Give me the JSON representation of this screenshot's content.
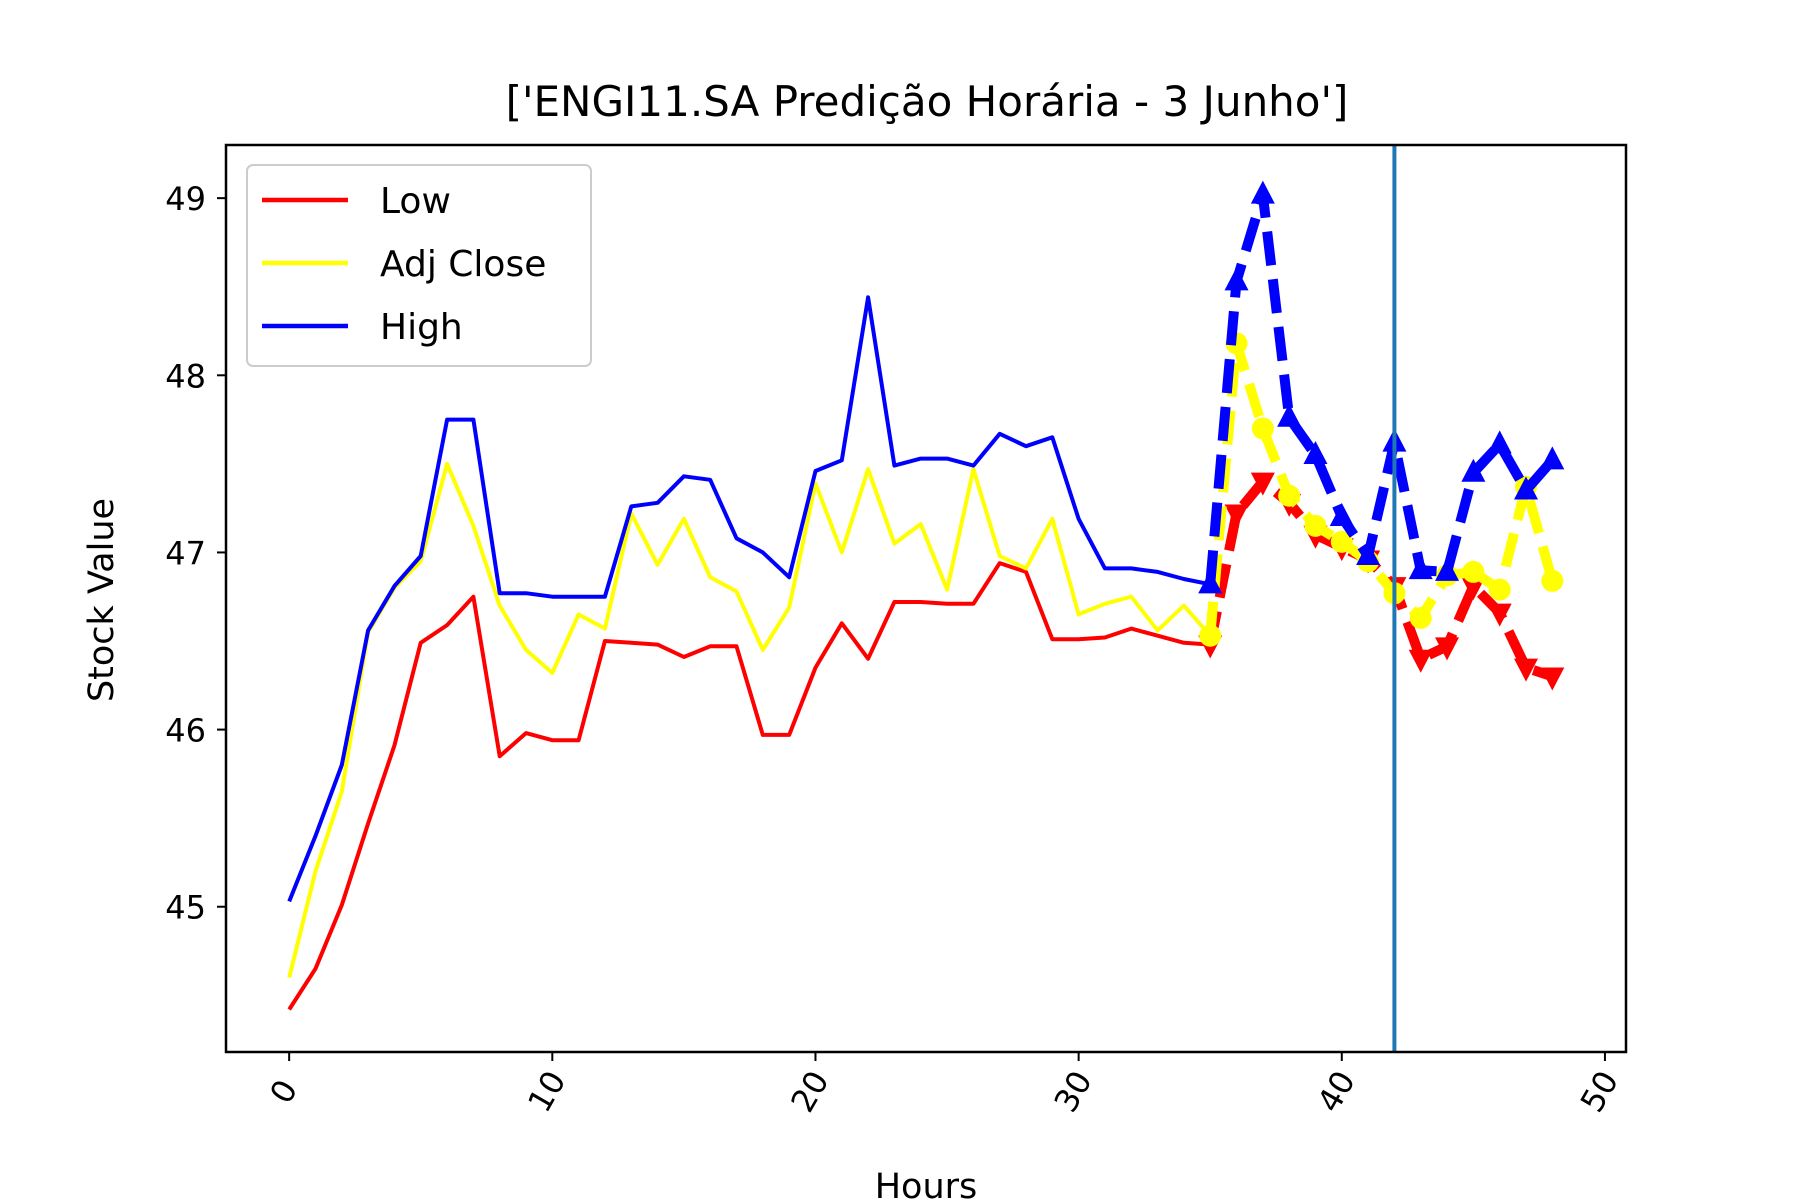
{
  "chart_data": {
    "type": "line",
    "title": "['ENGI11.SA Predição Horária - 3 Junho']",
    "xlabel": "Hours",
    "ylabel": "Stock Value",
    "xlim": [
      -2.4,
      50.8
    ],
    "ylim": [
      44.18,
      49.3
    ],
    "x_ticks": [
      0,
      10,
      20,
      30,
      40,
      50
    ],
    "y_ticks": [
      45,
      46,
      47,
      48,
      49
    ],
    "x_tick_labels": [
      "0",
      "10",
      "20",
      "30",
      "40",
      "50"
    ],
    "y_tick_labels": [
      "45",
      "46",
      "47",
      "48",
      "49"
    ],
    "x_tick_rotation": 60,
    "vertical_line": {
      "x": 42,
      "color": "#1f77b4"
    },
    "grid": false,
    "legend": {
      "location": "upper-left",
      "entries": [
        {
          "label": "Low",
          "color": "#ff0000"
        },
        {
          "label": "Adj Close",
          "color": "#ffff00"
        },
        {
          "label": "High",
          "color": "#0000ff"
        }
      ]
    },
    "series": [
      {
        "name": "Low",
        "color": "#ff0000",
        "style": "solid",
        "x": [
          0,
          1,
          2,
          3,
          4,
          5,
          6,
          7,
          8,
          9,
          10,
          11,
          12,
          13,
          14,
          15,
          16,
          17,
          18,
          19,
          20,
          21,
          22,
          23,
          24,
          25,
          26,
          27,
          28,
          29,
          30,
          31,
          32,
          33,
          34,
          35
        ],
        "values": [
          44.42,
          44.65,
          45.01,
          45.47,
          45.91,
          46.49,
          46.59,
          46.75,
          45.85,
          45.98,
          45.94,
          45.94,
          46.5,
          46.49,
          46.48,
          46.41,
          46.47,
          46.47,
          45.97,
          45.97,
          46.35,
          46.6,
          46.4,
          46.72,
          46.72,
          46.71,
          46.71,
          46.94,
          46.89,
          46.51,
          46.51,
          46.52,
          46.57,
          46.53,
          46.49,
          46.48
        ]
      },
      {
        "name": "Adj Close",
        "color": "#ffff00",
        "style": "solid",
        "x": [
          0,
          1,
          2,
          3,
          4,
          5,
          6,
          7,
          8,
          9,
          10,
          11,
          12,
          13,
          14,
          15,
          16,
          17,
          18,
          19,
          20,
          21,
          22,
          23,
          24,
          25,
          26,
          27,
          28,
          29,
          30,
          31,
          32,
          33,
          34,
          35
        ],
        "values": [
          44.6,
          45.2,
          45.65,
          46.55,
          46.8,
          46.95,
          47.5,
          47.15,
          46.7,
          46.45,
          46.32,
          46.65,
          46.57,
          47.22,
          46.93,
          47.19,
          46.86,
          46.78,
          46.45,
          46.69,
          47.39,
          47.0,
          47.47,
          47.05,
          47.16,
          46.79,
          47.47,
          46.98,
          46.91,
          47.19,
          46.65,
          46.71,
          46.75,
          46.56,
          46.7,
          46.53
        ]
      },
      {
        "name": "High",
        "color": "#0000ff",
        "style": "solid",
        "x": [
          0,
          1,
          2,
          3,
          4,
          5,
          6,
          7,
          8,
          9,
          10,
          11,
          12,
          13,
          14,
          15,
          16,
          17,
          18,
          19,
          20,
          21,
          22,
          23,
          24,
          25,
          26,
          27,
          28,
          29,
          30,
          31,
          32,
          33,
          34,
          35
        ],
        "values": [
          45.03,
          45.4,
          45.8,
          46.56,
          46.81,
          46.98,
          47.75,
          47.75,
          46.77,
          46.77,
          46.75,
          46.75,
          46.75,
          47.26,
          47.28,
          47.43,
          47.41,
          47.08,
          47.0,
          46.86,
          47.46,
          47.52,
          48.44,
          47.49,
          47.53,
          47.53,
          47.49,
          47.67,
          47.6,
          47.65,
          47.19,
          46.91,
          46.91,
          46.89,
          46.85,
          46.82
        ]
      },
      {
        "name": "",
        "color": "#ff0000",
        "style": "dashed",
        "marker": "triangle-down",
        "x": [
          35,
          36,
          37,
          38,
          39,
          40,
          41,
          42,
          43,
          44,
          45,
          46,
          47,
          48
        ],
        "values": [
          46.48,
          47.22,
          47.4,
          47.28,
          47.1,
          47.03,
          46.96,
          46.81,
          46.4,
          46.47,
          46.81,
          46.66,
          46.35,
          46.3
        ]
      },
      {
        "name": "",
        "color": "#ffff00",
        "style": "dashed",
        "marker": "circle",
        "x": [
          35,
          36,
          37,
          38,
          39,
          40,
          41,
          42,
          43,
          44,
          45,
          46,
          47,
          48
        ],
        "values": [
          46.53,
          48.18,
          47.7,
          47.32,
          47.15,
          47.06,
          46.95,
          46.77,
          46.63,
          46.87,
          46.89,
          46.79,
          47.37,
          46.84
        ]
      },
      {
        "name": "",
        "color": "#0000ff",
        "style": "dashed",
        "marker": "triangle-up",
        "x": [
          35,
          36,
          37,
          38,
          39,
          40,
          41,
          42,
          43,
          44,
          45,
          46,
          47,
          48
        ],
        "values": [
          46.82,
          48.53,
          49.02,
          47.76,
          47.55,
          47.2,
          46.98,
          47.62,
          46.9,
          46.89,
          47.45,
          47.61,
          47.35,
          47.52
        ]
      }
    ]
  }
}
